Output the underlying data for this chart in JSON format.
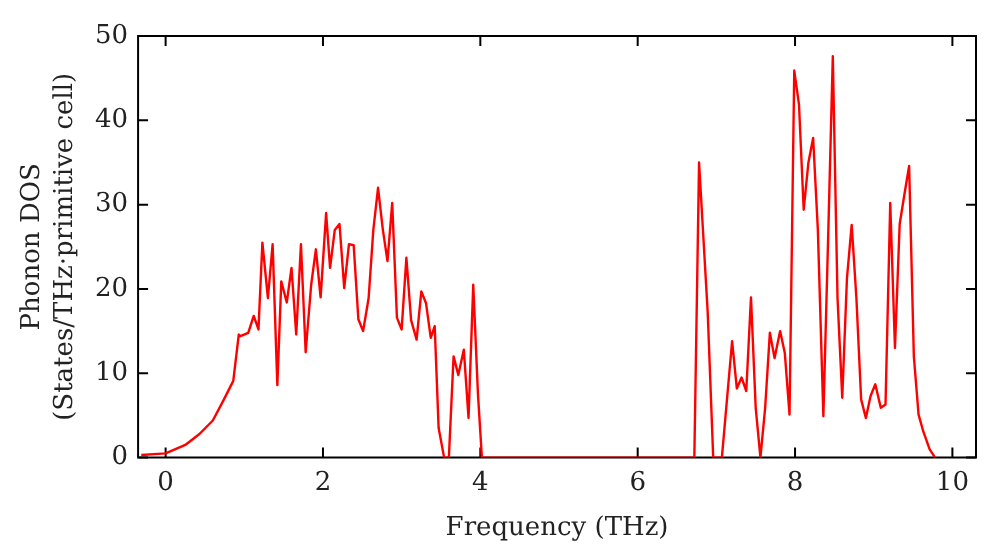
{
  "chart_data": {
    "type": "line",
    "xlabel": "Frequency (THz)",
    "ylabel": "Phonon DOS\n(States/THz·primitive cell)",
    "xlim": [
      -0.35,
      10.3
    ],
    "ylim": [
      0,
      50
    ],
    "xticks": [
      0,
      2,
      4,
      6,
      8,
      10
    ],
    "yticks": [
      0,
      10,
      20,
      30,
      40,
      50
    ],
    "grid": false,
    "legend": false,
    "marker": "none",
    "line_style": "solid",
    "series": [
      {
        "color": "#ff0000",
        "x": [
          -0.31,
          0,
          0.25,
          0.43,
          0.6,
          0.73,
          0.86,
          0.93,
          0.95,
          1.05,
          1.12,
          1.18,
          1.23,
          1.3,
          1.36,
          1.42,
          1.47,
          1.54,
          1.6,
          1.66,
          1.72,
          1.78,
          1.85,
          1.91,
          1.97,
          2.04,
          2.09,
          2.15,
          2.21,
          2.27,
          2.33,
          2.39,
          2.45,
          2.51,
          2.58,
          2.64,
          2.7,
          2.76,
          2.82,
          2.88,
          2.94,
          3.0,
          3.06,
          3.12,
          3.19,
          3.25,
          3.31,
          3.37,
          3.42,
          3.47,
          3.54,
          3.6,
          3.66,
          3.72,
          3.79,
          3.85,
          3.91,
          3.97,
          4.02,
          6.72,
          6.78,
          6.89,
          6.96,
          7.07,
          7.2,
          7.26,
          7.32,
          7.38,
          7.44,
          7.5,
          7.56,
          7.62,
          7.68,
          7.74,
          7.81,
          7.87,
          7.93,
          7.99,
          8.05,
          8.11,
          8.17,
          8.23,
          8.29,
          8.36,
          8.42,
          8.48,
          8.54,
          8.6,
          8.66,
          8.72,
          8.78,
          8.84,
          8.9,
          8.96,
          9.02,
          9.09,
          9.15,
          9.21,
          9.27,
          9.33,
          9.39,
          9.45,
          9.51,
          9.57,
          9.63,
          9.71,
          9.78
        ],
        "values": [
          0.3,
          0.5,
          1.5,
          2.8,
          4.4,
          6.7,
          9.1,
          14.6,
          14.4,
          14.8,
          16.8,
          15.2,
          25.5,
          18.9,
          25.3,
          8.6,
          20.9,
          18.4,
          22.5,
          14.6,
          25.3,
          12.5,
          20.5,
          24.7,
          19,
          29,
          22.5,
          27,
          27.7,
          20.1,
          25.3,
          25.2,
          16.4,
          15,
          18.9,
          27,
          32,
          27.1,
          23.3,
          30.2,
          16.6,
          15.2,
          23.7,
          16.3,
          14,
          19.7,
          18.3,
          14.2,
          15.6,
          3.5,
          0,
          0,
          12,
          9.8,
          12.8,
          4.7,
          20.5,
          7.5,
          0,
          0,
          35,
          17.2,
          0,
          0,
          13.8,
          8.2,
          9.5,
          7.9,
          19,
          5.9,
          0,
          5.9,
          14.8,
          11.8,
          15,
          12.4,
          5.1,
          45.9,
          41.9,
          29.4,
          35,
          37.9,
          27,
          4.9,
          25.8,
          47.6,
          18.9,
          7.1,
          21.3,
          27.6,
          18.9,
          6.9,
          4.7,
          7.3,
          8.7,
          5.9,
          6.3,
          30.2,
          13,
          27.7,
          31.2,
          34.6,
          12,
          5.1,
          3.1,
          1,
          0
        ]
      }
    ]
  }
}
